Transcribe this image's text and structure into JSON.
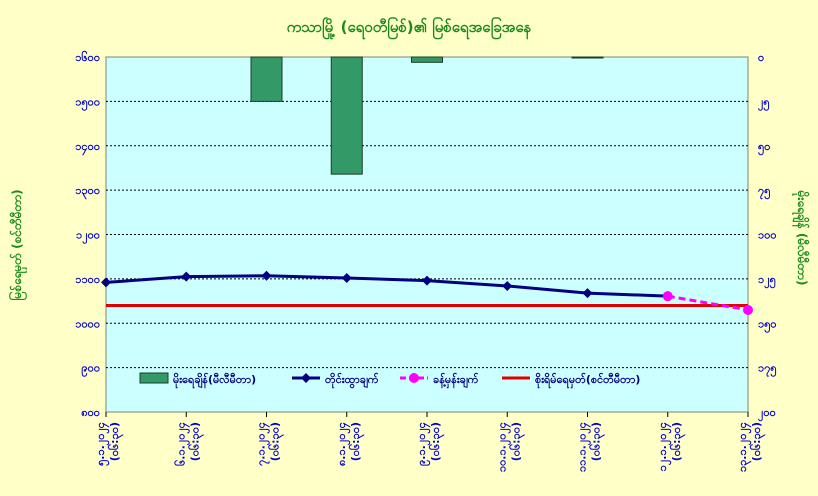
{
  "chart_data": {
    "type": "bar+line",
    "title": "ကသာမြို့ (ရေဝတီမြစ်)၏ မြစ်ရေအခြေအနေ",
    "ylabel_left": "မြစ်ရေမှတ် (စင်တီမီတာ)",
    "ylabel_right": "မိုးရေချိန် (မီလီမီတာ)",
    "categories": [
      "၅.၁.၂၀၂၄\n(၀၆:၃၀)",
      "၆.၁.၂၀၂၄\n(၀၆:၃၀)",
      "၇.၁.၂၀၂၄\n(၀၆:၃၀)",
      "၈.၁.၂၀၂၄\n(၀၆:၃၀)",
      "၉.၁.၂၀၂၄\n(၀၆:၃၀)",
      "၁၀.၁.၂၀၂၄\n(၀၆:၃၀)",
      "၁၁.၁.၂၀၂၄\n(၀၆:၃၀)",
      "၁၂.၁.၂၀၂၄\n(၀၆:၃၀)",
      "၁၃.၁.၂၀၂၄\n(၀၆:၃၀)"
    ],
    "y_left": {
      "range": [
        800,
        1600
      ],
      "ticks": [
        "၈၀၀",
        "၉၀၀",
        "၁၀၀၀",
        "၁၁၀၀",
        "၁၂၀၀",
        "၁၃၀၀",
        "၁၄၀၀",
        "၁၅၀၀",
        "၁၆၀၀"
      ],
      "tick_values": [
        800,
        900,
        1000,
        1100,
        1200,
        1300,
        1400,
        1500,
        1600
      ]
    },
    "y_right": {
      "range": [
        0,
        200
      ],
      "inverted": true,
      "ticks": [
        "၀",
        "၂၅",
        "၅၀",
        "၇၅",
        "၁၀၀",
        "၁၂၅",
        "၁၅၀",
        "၁၇၅",
        "၂၀၀"
      ],
      "tick_values": [
        0,
        25,
        50,
        75,
        100,
        125,
        150,
        175,
        200
      ]
    },
    "grid": true,
    "series": [
      {
        "name": "မိုးရေချိန်(မီလီမီတာ)",
        "type": "bar",
        "axis": "right",
        "color": "#339966",
        "values": [
          null,
          null,
          25,
          66,
          3,
          null,
          0.4,
          null,
          null
        ]
      },
      {
        "name": "တိုင်းထွာချက်",
        "type": "line",
        "axis": "left",
        "color": "#000080",
        "marker": "diamond",
        "values": [
          1092,
          1105,
          1107,
          1102,
          1096,
          1084,
          1068,
          1061,
          null
        ]
      },
      {
        "name": "ခန့်မှန်းချက်",
        "type": "line",
        "axis": "left",
        "color": "#ff00ff",
        "marker": "circle",
        "dashed": true,
        "values": [
          null,
          null,
          null,
          null,
          null,
          null,
          null,
          1061,
          1030
        ]
      },
      {
        "name": "စိုးရိမ်ရေမှတ်(စင်တီမီတာ)",
        "type": "hline",
        "axis": "left",
        "color": "#e00000",
        "value": 1040
      }
    ],
    "legend_position": "bottom-inside"
  },
  "colors": {
    "background": "#ffffc8",
    "plot_area": "#ccffff",
    "title": "#1a8a1a",
    "tick_labels": "#0000cc"
  }
}
